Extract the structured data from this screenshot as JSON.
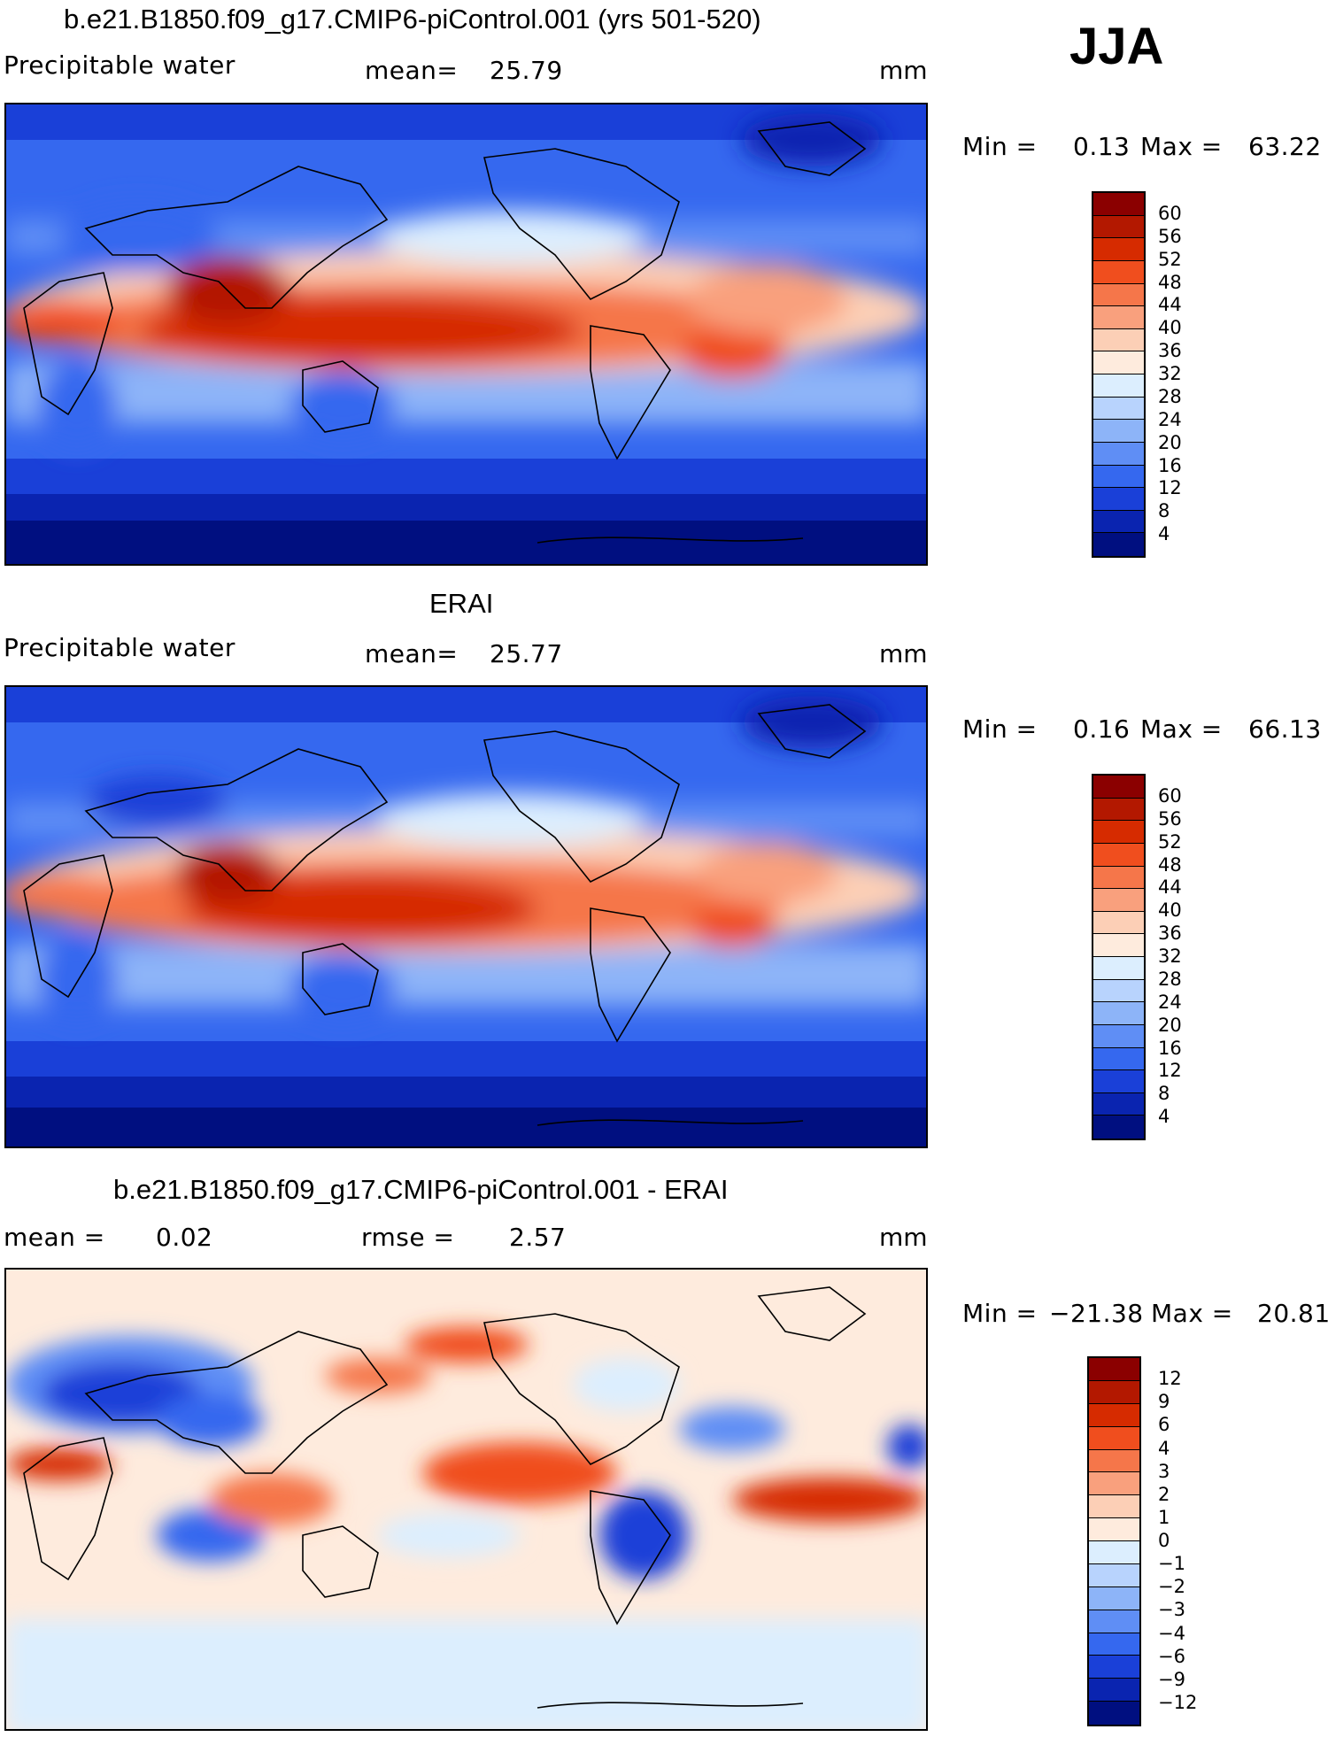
{
  "season": "JJA",
  "panels": [
    {
      "title": "b.e21.B1850.f09_g17.CMIP6-piControl.001 (yrs 501-520)",
      "left_label": "Precipitable water",
      "stat1_label": "mean=",
      "stat1_value": "25.79",
      "stat2_label": "",
      "stat2_value": "",
      "units": "mm",
      "min_label": "Min =",
      "min_value": "0.13",
      "max_label": "Max =",
      "max_value": "63.22",
      "colorbar_labels": [
        "60",
        "56",
        "52",
        "48",
        "44",
        "40",
        "36",
        "32",
        "28",
        "24",
        "20",
        "16",
        "12",
        "8",
        "4"
      ],
      "colors": [
        "#8b0000",
        "#b31800",
        "#d62b00",
        "#f04e1e",
        "#f5764a",
        "#f9a07d",
        "#fccfb6",
        "#feebdd",
        "#dceefe",
        "#b8d3fd",
        "#8db4f8",
        "#5f8ef5",
        "#3568ef",
        "#1a40d8",
        "#0a24b0",
        "#000f80"
      ]
    },
    {
      "title": "ERAI",
      "left_label": "Precipitable water",
      "stat1_label": "mean=",
      "stat1_value": "25.77",
      "stat2_label": "",
      "stat2_value": "",
      "units": "mm",
      "min_label": "Min =",
      "min_value": "0.16",
      "max_label": "Max =",
      "max_value": "66.13",
      "colorbar_labels": [
        "60",
        "56",
        "52",
        "48",
        "44",
        "40",
        "36",
        "32",
        "28",
        "24",
        "20",
        "16",
        "12",
        "8",
        "4"
      ],
      "colors": [
        "#8b0000",
        "#b31800",
        "#d62b00",
        "#f04e1e",
        "#f5764a",
        "#f9a07d",
        "#fccfb6",
        "#feebdd",
        "#dceefe",
        "#b8d3fd",
        "#8db4f8",
        "#5f8ef5",
        "#3568ef",
        "#1a40d8",
        "#0a24b0",
        "#000f80"
      ]
    },
    {
      "title": "b.e21.B1850.f09_g17.CMIP6-piControl.001 - ERAI",
      "left_label": "mean =",
      "left_value": "0.02",
      "stat1_label": "rmse =",
      "stat1_value": "2.57",
      "units": "mm",
      "min_label": "Min =",
      "min_value": "−21.38",
      "max_label": "Max =",
      "max_value": "20.81",
      "colorbar_labels": [
        "12",
        "9",
        "6",
        "4",
        "3",
        "2",
        "1",
        "0",
        "−1",
        "−2",
        "−3",
        "−4",
        "−6",
        "−9",
        "−12"
      ],
      "colors": [
        "#8b0000",
        "#b31800",
        "#d62b00",
        "#f04e1e",
        "#f5764a",
        "#f9a07d",
        "#fccfb6",
        "#feebdd",
        "#dceefe",
        "#b8d3fd",
        "#8db4f8",
        "#5f8ef5",
        "#3568ef",
        "#1a40d8",
        "#0a24b0",
        "#000f80"
      ]
    }
  ],
  "chart_data": [
    {
      "type": "heatmap",
      "title": "b.e21.B1850.f09_g17.CMIP6-piControl.001 (yrs 501-520)",
      "variable": "Precipitable water",
      "units": "mm",
      "mean": 25.79,
      "min": 0.13,
      "max": 63.22,
      "contour_levels": [
        4,
        8,
        12,
        16,
        20,
        24,
        28,
        32,
        36,
        40,
        44,
        48,
        52,
        56,
        60
      ]
    },
    {
      "type": "heatmap",
      "title": "ERAI",
      "variable": "Precipitable water",
      "units": "mm",
      "mean": 25.77,
      "min": 0.16,
      "max": 66.13,
      "contour_levels": [
        4,
        8,
        12,
        16,
        20,
        24,
        28,
        32,
        36,
        40,
        44,
        48,
        52,
        56,
        60
      ]
    },
    {
      "type": "heatmap",
      "title": "b.e21.B1850.f09_g17.CMIP6-piControl.001 - ERAI",
      "units": "mm",
      "mean": 0.02,
      "rmse": 2.57,
      "min": -21.38,
      "max": 20.81,
      "contour_levels": [
        -12,
        -9,
        -6,
        -4,
        -3,
        -2,
        -1,
        0,
        1,
        2,
        3,
        4,
        6,
        9,
        12
      ]
    }
  ]
}
